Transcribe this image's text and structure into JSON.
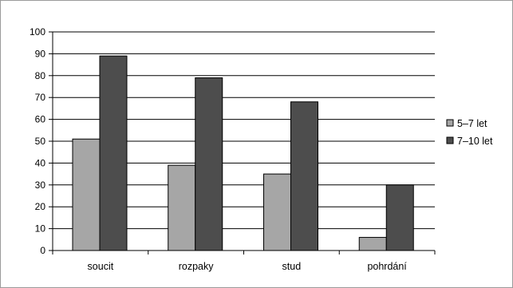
{
  "chart_data": {
    "type": "bar",
    "categories": [
      "soucit",
      "rozpaky",
      "stud",
      "pohrdání"
    ],
    "series": [
      {
        "name": "5–7 let",
        "values": [
          51,
          39,
          35,
          6
        ],
        "color": "#a6a6a6"
      },
      {
        "name": "7–10 let",
        "values": [
          89,
          79,
          68,
          30
        ],
        "color": "#4d4d4d"
      }
    ],
    "ylim": [
      0,
      100
    ],
    "yticks": [
      0,
      10,
      20,
      30,
      40,
      50,
      60,
      70,
      80,
      90,
      100
    ],
    "grid": true,
    "legend_position": "right"
  }
}
